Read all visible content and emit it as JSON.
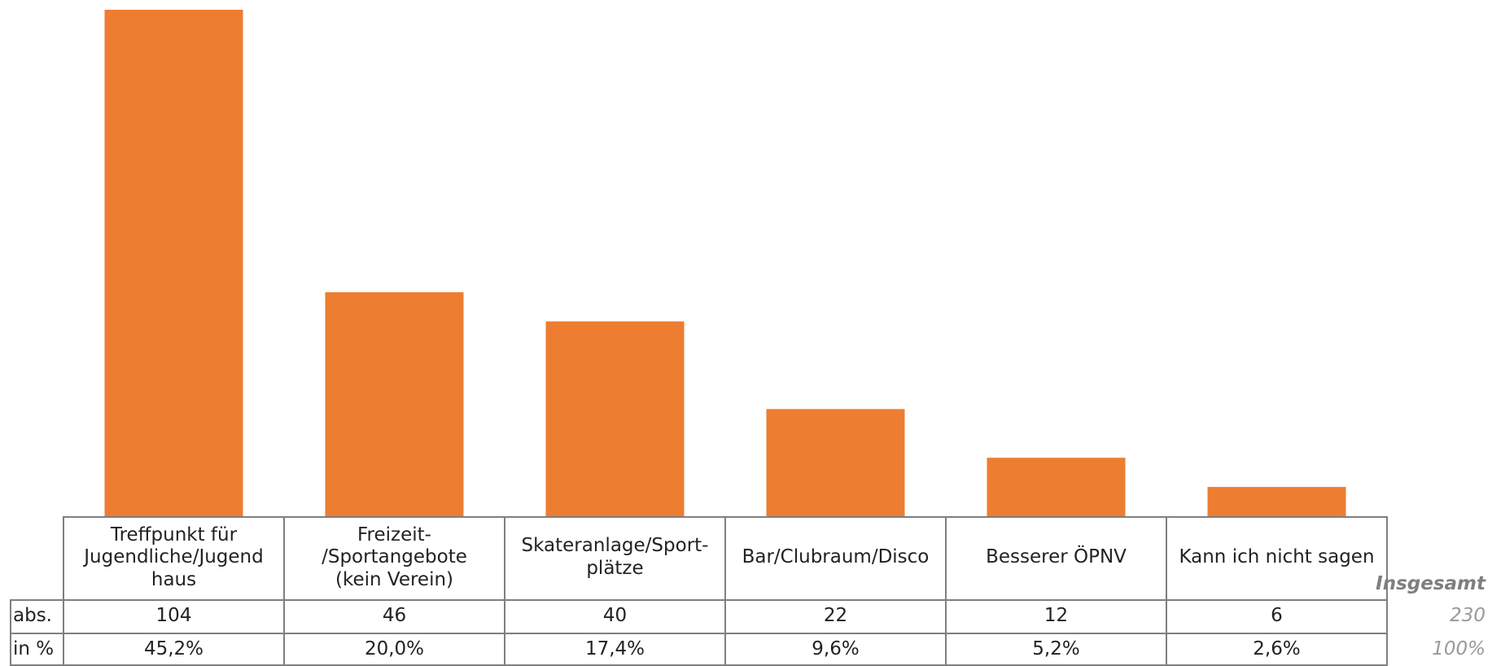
{
  "chart_data": {
    "type": "bar",
    "categories": [
      "Treffpunkt für Jugendliche/Jugend haus",
      "Freizeit- /Sportangebote (kein Verein)",
      "Skateranlage/Sport- plätze",
      "Bar/Clubraum/Disco",
      "Besserer ÖPNV",
      "Kann ich nicht sagen"
    ],
    "category_lines": [
      [
        "Treffpunkt für",
        "Jugendliche/Jugend",
        "haus"
      ],
      [
        "Freizeit-",
        "/Sportangebote",
        "(kein Verein)"
      ],
      [
        "Skateranlage/Sport-",
        "plätze"
      ],
      [
        "Bar/Clubraum/Disco"
      ],
      [
        "Besserer ÖPNV"
      ],
      [
        "Kann ich nicht sagen"
      ]
    ],
    "values": [
      104,
      46,
      40,
      22,
      12,
      6
    ],
    "percent_labels": [
      "45,2%",
      "20,0%",
      "17,4%",
      "9,6%",
      "5,2%",
      "2,6%"
    ],
    "row_labels": [
      "abs.",
      "in %"
    ],
    "total_label": "Insgesamt",
    "total_abs": "230",
    "total_pct": "100%",
    "ylim": [
      0,
      104
    ],
    "bar_color": "#ed7d31",
    "grid": false
  }
}
